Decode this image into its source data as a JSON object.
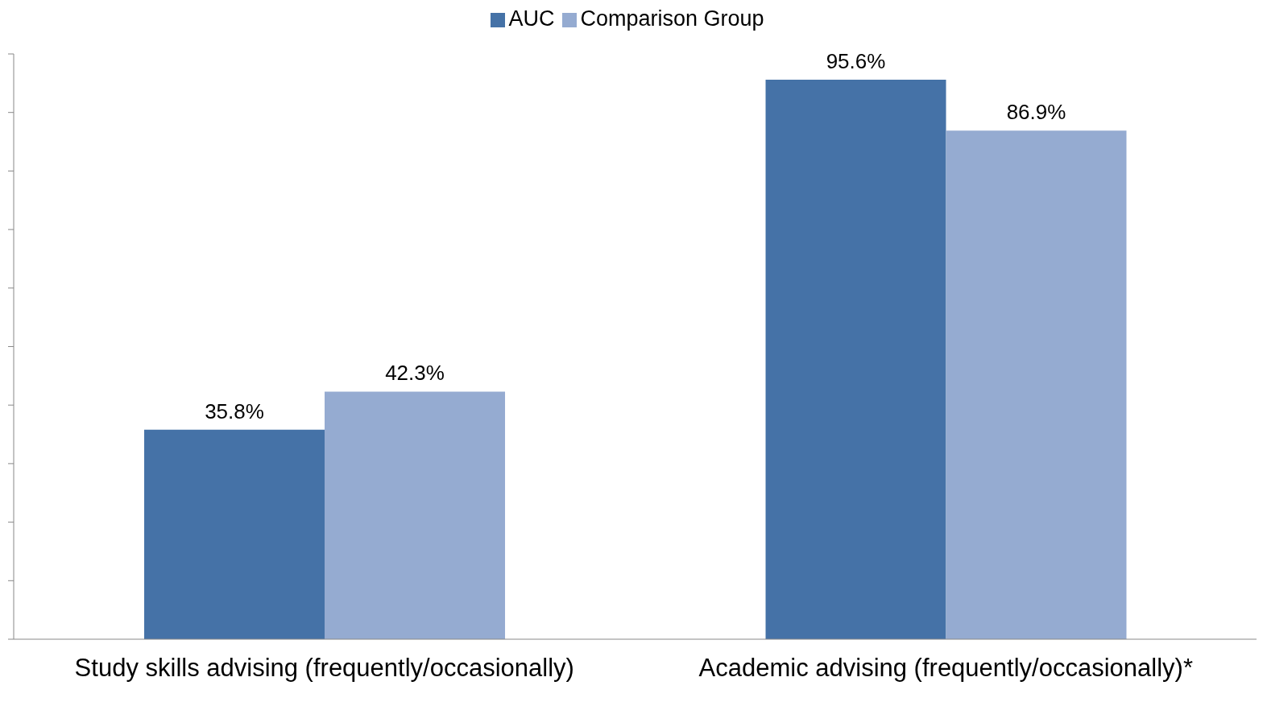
{
  "chart_data": {
    "type": "bar",
    "categories": [
      "Study skills advising (frequently/occasionally)",
      "Academic advising (frequently/occasionally)*"
    ],
    "series": [
      {
        "name": "AUC",
        "color": "#4572a7",
        "values": [
          35.8,
          95.6
        ],
        "value_labels": [
          "35.8%",
          "95.6%"
        ]
      },
      {
        "name": "Comparison Group",
        "color": "#95abd1",
        "values": [
          42.3,
          86.9
        ],
        "value_labels": [
          "42.3%",
          "86.9%"
        ]
      }
    ],
    "ylim": [
      0,
      100
    ],
    "yticks": [
      {
        "value": 0,
        "label": null
      },
      {
        "value": 10,
        "label": null
      },
      {
        "value": 20,
        "label": null
      },
      {
        "value": 30,
        "label": null
      },
      {
        "value": 40,
        "label": null
      },
      {
        "value": 50,
        "label": null
      },
      {
        "value": 60,
        "label": null
      },
      {
        "value": 70,
        "label": null
      },
      {
        "value": 80,
        "label": null
      },
      {
        "value": 90,
        "label": null
      },
      {
        "value": 100,
        "label": null
      }
    ],
    "tick_labels": "x",
    "grid": false,
    "legend": "top"
  }
}
